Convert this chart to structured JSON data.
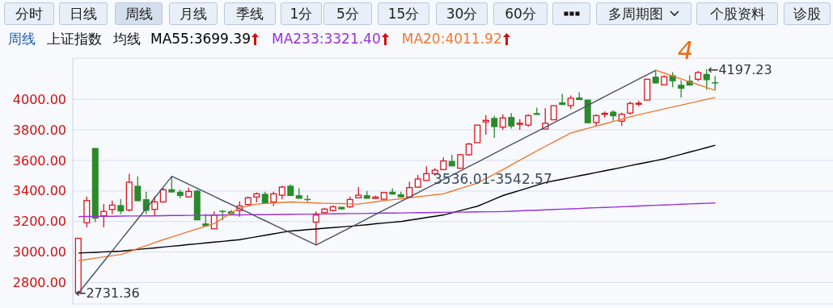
{
  "chart_data": {
    "type": "candlestick",
    "annotations": [
      "分时",
      "日线",
      "周线",
      "月线",
      "季线",
      "1分",
      "5分",
      "15分",
      "30分",
      "60分",
      "多周期图",
      "个股资料",
      "诊股",
      "周线",
      "上证指数",
      "均线",
      "4",
      "←2731.36",
      "←4197.23",
      "3536.01-3542.57"
    ],
    "categories": [
      null,
      null,
      null,
      null,
      null,
      null,
      null,
      null,
      null,
      null,
      null,
      null,
      null,
      null,
      null,
      null,
      null,
      null,
      null,
      null,
      null,
      null,
      null,
      null,
      null,
      null,
      null,
      null,
      null,
      null,
      null,
      null,
      null,
      null,
      null,
      null,
      null,
      null,
      null,
      null,
      null,
      null,
      null,
      null,
      null,
      null,
      null,
      null,
      null,
      null,
      null,
      null,
      null,
      null,
      null,
      null,
      null,
      null,
      null,
      null,
      null,
      null,
      null,
      null,
      null,
      null,
      null,
      null,
      null,
      null,
      null,
      null,
      null,
      null,
      null,
      null
    ],
    "ohlc": [
      [
        2732,
        3090,
        2731.36,
        3090
      ],
      [
        3192,
        3364,
        3161,
        3337
      ],
      [
        3681,
        3681,
        3196,
        3219
      ],
      [
        3237,
        3314,
        3161,
        3266
      ],
      [
        3279,
        3337,
        3249,
        3307
      ],
      [
        3307,
        3346,
        3249,
        3266
      ],
      [
        3275,
        3513,
        3266,
        3457
      ],
      [
        3434,
        3496,
        3333,
        3333
      ],
      [
        3346,
        3395,
        3249,
        3270
      ],
      [
        3279,
        3364,
        3237,
        3328
      ],
      [
        3328,
        3420,
        3322,
        3408
      ],
      [
        3411,
        3496,
        3390,
        3390
      ],
      [
        3395,
        3408,
        3352,
        3367
      ],
      [
        3361,
        3422,
        3355,
        3397
      ],
      [
        3402,
        3408,
        3208,
        3208
      ],
      [
        3187,
        3249,
        3169,
        3169
      ],
      [
        3152,
        3266,
        3152,
        3242
      ],
      [
        3270,
        3275,
        3208,
        3266
      ],
      [
        3266,
        3275,
        3249,
        3249
      ],
      [
        3272,
        3332,
        3232,
        3302
      ],
      [
        3311,
        3364,
        3302,
        3355
      ],
      [
        3360,
        3390,
        3325,
        3381
      ],
      [
        3381,
        3395,
        3319,
        3319
      ],
      [
        3328,
        3395,
        3302,
        3381
      ],
      [
        3372,
        3434,
        3346,
        3425
      ],
      [
        3434,
        3443,
        3367,
        3367
      ],
      [
        3372,
        3417,
        3349,
        3349
      ],
      [
        3348,
        3372,
        3330,
        3346
      ],
      [
        3196,
        3266,
        3046,
        3242
      ],
      [
        3258,
        3290,
        3256,
        3281
      ],
      [
        3272,
        3305,
        3264,
        3296
      ],
      [
        3296,
        3296,
        3279,
        3279
      ],
      [
        3296,
        3364,
        3290,
        3344
      ],
      [
        3355,
        3425,
        3351,
        3372
      ],
      [
        3372,
        3399,
        3349,
        3349
      ],
      [
        3351,
        3369,
        3346,
        3360
      ],
      [
        3346,
        3390,
        3346,
        3390
      ],
      [
        3395,
        3417,
        3376,
        3376
      ],
      [
        3378,
        3395,
        3358,
        3358
      ],
      [
        3360,
        3460,
        3355,
        3422
      ],
      [
        3425,
        3505,
        3420,
        3478
      ],
      [
        3469,
        3561,
        3469,
        3513
      ],
      [
        3513,
        3550,
        3499,
        3536
      ],
      [
        3540,
        3620,
        3540,
        3596
      ],
      [
        3596,
        3637,
        3561,
        3561
      ],
      [
        3549,
        3642,
        3549,
        3637
      ],
      [
        3637,
        3716,
        3632,
        3707
      ],
      [
        3716,
        3831,
        3716,
        3831
      ],
      [
        3852,
        3896,
        3769,
        3862
      ],
      [
        3878,
        3893,
        3748,
        3818
      ],
      [
        3818,
        3900,
        3800,
        3878
      ],
      [
        3884,
        3910,
        3808,
        3822
      ],
      [
        3838,
        3870,
        3800,
        3843
      ],
      [
        3831,
        3902,
        3820,
        3893
      ],
      [
        3910,
        3945,
        3898,
        3898
      ],
      [
        3805,
        3942,
        3805,
        3843
      ],
      [
        3866,
        3958,
        3866,
        3958
      ],
      [
        3980,
        4037,
        3963,
        3963
      ],
      [
        3959,
        4025,
        3937,
        4007
      ],
      [
        4012,
        4046,
        3995,
        3995
      ],
      [
        3998,
        3998,
        3843,
        3843
      ],
      [
        3848,
        3902,
        3825,
        3893
      ],
      [
        3903,
        3920,
        3880,
        3908
      ],
      [
        3919,
        3928,
        3860,
        3889
      ],
      [
        3857,
        3912,
        3825,
        3902
      ],
      [
        3910,
        3985,
        3900,
        3972
      ],
      [
        3970,
        3990,
        3955,
        3974
      ],
      [
        3995,
        4131,
        3995,
        4131
      ],
      [
        4148,
        4190,
        4104,
        4104
      ],
      [
        4095,
        4157,
        4095,
        4148
      ],
      [
        4157,
        4178,
        4078,
        4118
      ],
      [
        4095,
        4125,
        4012,
        4069
      ],
      [
        4122,
        4157,
        4090,
        4090
      ],
      [
        4131,
        4185,
        4120,
        4175
      ],
      [
        4166,
        4197.23,
        4063,
        4125
      ],
      [
        4112,
        4152,
        4060,
        4108
      ]
    ],
    "series": [
      {
        "type": "line",
        "name": "MA55:3699.39",
        "color": "#000000",
        "values": [
          2993,
          2996,
          2998,
          3001,
          3003,
          3006,
          3011,
          3017,
          3022,
          3027,
          3033,
          3038,
          3043,
          3049,
          3054,
          3060,
          3065,
          3070,
          3076,
          3081,
          3091,
          3100,
          3110,
          3119,
          3129,
          3138,
          3142,
          3147,
          3151,
          3156,
          3160,
          3165,
          3169,
          3174,
          3179,
          3185,
          3190,
          3195,
          3200,
          3209,
          3217,
          3226,
          3234,
          3243,
          3257,
          3272,
          3286,
          3300,
          3323,
          3347,
          3370,
          3387,
          3404,
          3421,
          3438,
          3455,
          3466,
          3477,
          3488,
          3499,
          3510,
          3521,
          3532,
          3543,
          3554,
          3566,
          3577,
          3588,
          3599,
          3610,
          3625,
          3640,
          3655,
          3669,
          3684,
          3699
        ]
      },
      {
        "type": "line",
        "name": "MA233:3321.40",
        "color": "#9b30d9",
        "values": [
          3232,
          3233,
          3233,
          3234,
          3234,
          3235,
          3236,
          3236,
          3237,
          3237,
          3238,
          3239,
          3239,
          3240,
          3240,
          3241,
          3242,
          3242,
          3243,
          3243,
          3244,
          3245,
          3245,
          3246,
          3246,
          3247,
          3248,
          3248,
          3249,
          3249,
          3250,
          3251,
          3252,
          3252,
          3253,
          3254,
          3255,
          3255,
          3256,
          3257,
          3258,
          3258,
          3259,
          3260,
          3261,
          3261,
          3262,
          3263,
          3264,
          3264,
          3265,
          3267,
          3270,
          3272,
          3274,
          3276,
          3279,
          3281,
          3283,
          3285,
          3288,
          3290,
          3292,
          3294,
          3297,
          3299,
          3301,
          3304,
          3306,
          3308,
          3310,
          3313,
          3315,
          3317,
          3319,
          3321
        ]
      },
      {
        "type": "line",
        "name": "MA20:4011.92",
        "color": "#f07830",
        "values": [
          2944,
          2952,
          2960,
          2968,
          2976,
          2984,
          3003,
          3023,
          3042,
          3062,
          3081,
          3099,
          3116,
          3134,
          3152,
          3169,
          3187,
          3221,
          3256,
          3290,
          3302,
          3314,
          3318,
          3321,
          3325,
          3328,
          3326,
          3324,
          3321,
          3319,
          3318,
          3317,
          3315,
          3314,
          3322,
          3329,
          3337,
          3343,
          3349,
          3355,
          3362,
          3368,
          3375,
          3381,
          3399,
          3417,
          3434,
          3452,
          3481,
          3511,
          3540,
          3571,
          3602,
          3632,
          3663,
          3692,
          3722,
          3751,
          3780,
          3795,
          3810,
          3825,
          3840,
          3855,
          3870,
          3885,
          3900,
          3912,
          3925,
          3937,
          3950,
          3962,
          3975,
          3987,
          4000,
          4012
        ]
      },
      {
        "type": "line",
        "color": "#4a5264",
        "values": [
          2731,
          2801,
          2870,
          2940,
          3009,
          3079,
          3148,
          3218,
          3287,
          3357,
          3426,
          3496,
          3470,
          3443,
          3417,
          3390,
          3364,
          3337,
          3311,
          3284,
          3258,
          3231,
          3205,
          3178,
          3152,
          3125,
          3099,
          3072,
          3046,
          3075,
          3103,
          3132,
          3160,
          3189,
          3218,
          3246,
          3275,
          3303,
          3332,
          3360,
          3389,
          3418,
          3446,
          3475,
          3503,
          3532,
          3561,
          3589,
          3618,
          3646,
          3675,
          3704,
          3732,
          3761,
          3789,
          3818,
          3847,
          3875,
          3904,
          3932,
          3961,
          3990,
          4018,
          4047,
          4075,
          4104,
          4133,
          4161,
          4190,
          null,
          null,
          null,
          null,
          null,
          null,
          null
        ]
      },
      {
        "type": "line",
        "color": "#f07830",
        "values": [
          null,
          null,
          null,
          null,
          null,
          null,
          null,
          null,
          null,
          null,
          null,
          null,
          null,
          null,
          null,
          null,
          null,
          null,
          null,
          null,
          null,
          null,
          null,
          null,
          null,
          null,
          null,
          null,
          null,
          null,
          null,
          null,
          null,
          null,
          null,
          null,
          null,
          null,
          null,
          null,
          null,
          null,
          null,
          null,
          null,
          null,
          null,
          null,
          null,
          null,
          null,
          null,
          null,
          null,
          null,
          null,
          null,
          null,
          null,
          null,
          null,
          null,
          null,
          null,
          null,
          null,
          null,
          null,
          4190,
          4171,
          4152,
          4133,
          4114,
          4096,
          4077,
          4058
        ]
      }
    ],
    "ylim": [
      2660,
      4270
    ],
    "yticks": [
      {
        "value": 2800,
        "label": "2800.00"
      },
      {
        "value": 3000,
        "label": "3000.00"
      },
      {
        "value": 3200,
        "label": "3200.00"
      },
      {
        "value": 3400,
        "label": "3400.00"
      },
      {
        "value": 3600,
        "label": "3600.00"
      },
      {
        "value": 3800,
        "label": "3800.00"
      },
      {
        "value": 4000,
        "label": "4000.00"
      }
    ],
    "grid": "y",
    "legend": "top left"
  }
}
